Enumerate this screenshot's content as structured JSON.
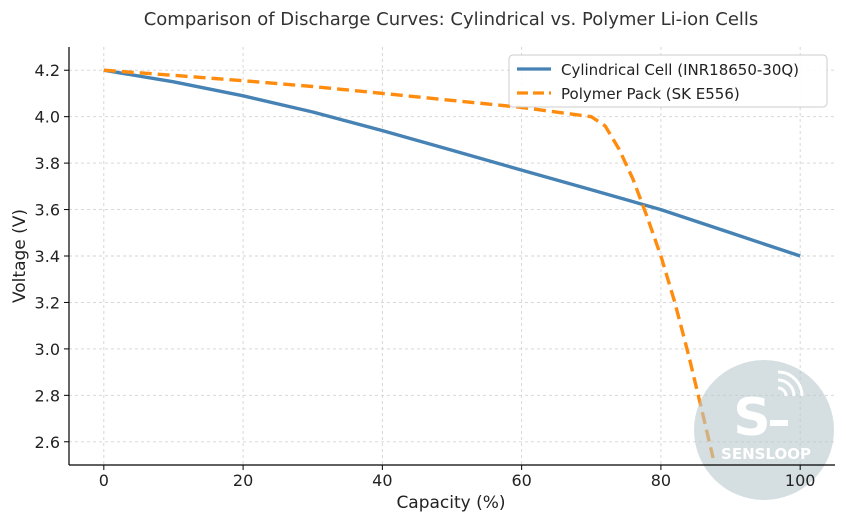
{
  "chart_data": {
    "type": "line",
    "title": "Comparison of Discharge Curves: Cylindrical vs. Polymer Li-ion Cells",
    "xlabel": "Capacity (%)",
    "ylabel": "Voltage (V)",
    "xlim": [
      -5,
      105
    ],
    "ylim": [
      2.5,
      4.3
    ],
    "xticks": [
      0,
      20,
      40,
      60,
      80,
      100
    ],
    "yticks": [
      2.6,
      2.8,
      3.0,
      3.2,
      3.4,
      3.6,
      3.8,
      4.0,
      4.2
    ],
    "ytick_labels": [
      "2.6",
      "2.8",
      "3.0",
      "3.2",
      "3.4",
      "3.6",
      "3.8",
      "4.0",
      "4.2"
    ],
    "grid": true,
    "legend_position": "top-right",
    "series": [
      {
        "name": "Cylindrical Cell (INR18650-30Q)",
        "color": "#4682b4",
        "style": "solid",
        "x": [
          0,
          10,
          20,
          30,
          40,
          50,
          60,
          70,
          80,
          90,
          100
        ],
        "y": [
          4.2,
          4.15,
          4.09,
          4.02,
          3.94,
          3.855,
          3.77,
          3.685,
          3.6,
          3.5,
          3.4
        ]
      },
      {
        "name": "Polymer Pack (SK E556)",
        "color": "#ff8c0e",
        "style": "dashed",
        "x": [
          0,
          10,
          20,
          30,
          40,
          50,
          60,
          70,
          72,
          74,
          76,
          78,
          80,
          82,
          84,
          86,
          87.5
        ],
        "y": [
          4.2,
          4.178,
          4.155,
          4.13,
          4.1,
          4.07,
          4.04,
          4.0,
          3.96,
          3.86,
          3.73,
          3.57,
          3.4,
          3.2,
          2.97,
          2.72,
          2.53
        ]
      }
    ]
  },
  "watermark": {
    "glyph": "S",
    "brand": "SENSLOOP",
    "color": "#b9c8cc"
  }
}
